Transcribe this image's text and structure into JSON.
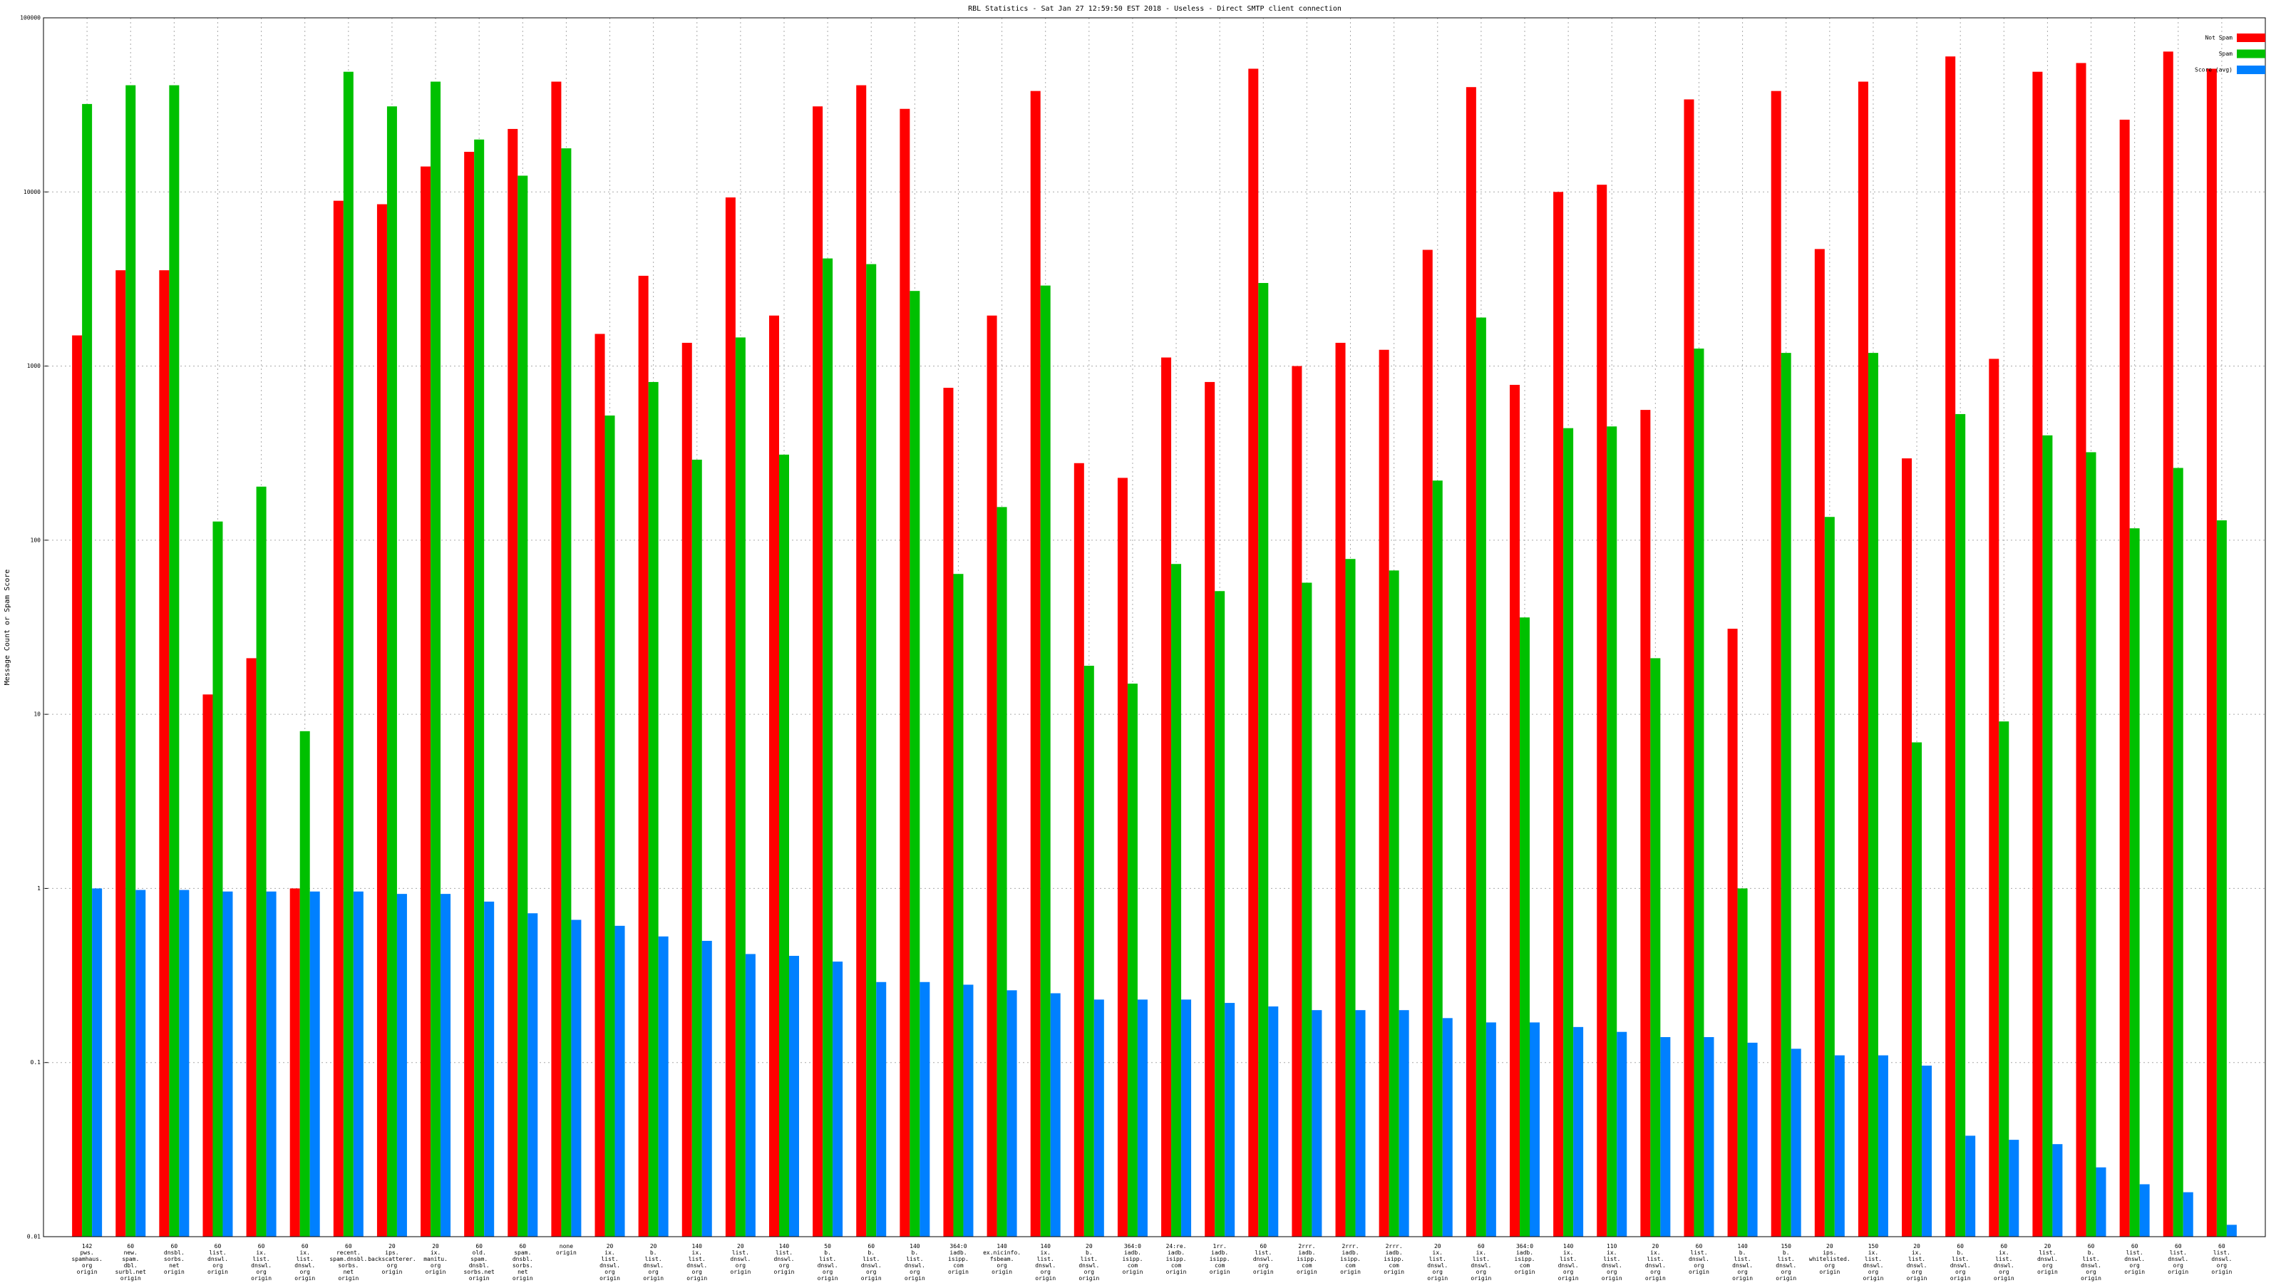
{
  "chart_data": {
    "type": "bar",
    "title": "RBL Statistics - Sat Jan 27 12:59:50 EST 2018 - Useless - Direct SMTP client connection",
    "y_label": "Message Count or Spam Score",
    "log_scale": true,
    "grid": true,
    "legend": "top-right",
    "ylim": [
      0.01,
      100000
    ],
    "yticks": [
      0.01,
      0.1,
      1,
      10,
      100,
      1000,
      10000,
      100000
    ],
    "categories": [
      [
        "142",
        "pws.",
        "spamhaus.",
        "org",
        "origin"
      ],
      [
        "60",
        "new.",
        "spam.",
        "dbl.",
        "surbl.net",
        "origin"
      ],
      [
        "60",
        "dnsbl.",
        "sorbs.",
        "net",
        "origin"
      ],
      [
        "60",
        "list.",
        "dnswl.",
        "org",
        "origin"
      ],
      [
        "60",
        "ix.",
        "list.",
        "dnswl.",
        "org",
        "origin"
      ],
      [
        "60",
        "ix.",
        "list.",
        "dnswl.",
        "org",
        "origin"
      ],
      [
        "60",
        "recent.",
        "spam.dnsbl.",
        "sorbs.",
        "net",
        "origin"
      ],
      [
        "20",
        "ips.",
        "backscatterer.",
        "org",
        "origin"
      ],
      [
        "20",
        "ix.",
        "manitu.",
        "org",
        "origin"
      ],
      [
        "60",
        "old.",
        "spam.",
        "dnsbl.",
        "sorbs.net",
        "origin"
      ],
      [
        "60",
        "spam.",
        "dnsbl.",
        "sorbs.",
        "net",
        "origin"
      ],
      [
        "none",
        "origin"
      ],
      [
        "20",
        "ix.",
        "list.",
        "dnswl.",
        "org",
        "origin"
      ],
      [
        "20",
        "b.",
        "list.",
        "dnswl.",
        "org",
        "origin"
      ],
      [
        "140",
        "ix.",
        "list.",
        "dnswl.",
        "org",
        "origin"
      ],
      [
        "20",
        "list.",
        "dnswl.",
        "org",
        "origin"
      ],
      [
        "140",
        "list.",
        "dnswl.",
        "org",
        "origin"
      ],
      [
        "50",
        "b.",
        "list.",
        "dnswl.",
        "org",
        "origin"
      ],
      [
        "60",
        "b.",
        "list.",
        "dnswl.",
        "org",
        "origin"
      ],
      [
        "140",
        "b.",
        "list.",
        "dnswl.",
        "org",
        "origin"
      ],
      [
        "364:0",
        "iadb.",
        "isipp.",
        "com",
        "origin"
      ],
      [
        "140",
        "ex.nicinfo.",
        "fsbeam.",
        "org",
        "origin"
      ],
      [
        "140",
        "ix.",
        "list.",
        "dnswl.",
        "org",
        "origin"
      ],
      [
        "20",
        "b.",
        "list.",
        "dnswl.",
        "org",
        "origin"
      ],
      [
        "364:0",
        "iadb.",
        "isipp.",
        "com",
        "origin"
      ],
      [
        "24:re.",
        "iadb.",
        "isipp.",
        "com",
        "origin"
      ],
      [
        "1rr.",
        "iadb.",
        "isipp.",
        "com",
        "origin"
      ],
      [
        "60",
        "list.",
        "dnswl.",
        "org",
        "origin"
      ],
      [
        "2rrr.",
        "iadb.",
        "isipp.",
        "com",
        "origin"
      ],
      [
        "2rrr.",
        "iadb.",
        "isipp.",
        "com",
        "origin"
      ],
      [
        "2rrr.",
        "iadb.",
        "isipp.",
        "com",
        "origin"
      ],
      [
        "20",
        "ix.",
        "list.",
        "dnswl.",
        "org",
        "origin"
      ],
      [
        "60",
        "ix.",
        "list.",
        "dnswl.",
        "org",
        "origin"
      ],
      [
        "364:0",
        "iadb.",
        "isipp.",
        "com",
        "origin"
      ],
      [
        "140",
        "ix.",
        "list.",
        "dnswl.",
        "org",
        "origin"
      ],
      [
        "110",
        "ix.",
        "list.",
        "dnswl.",
        "org",
        "origin"
      ],
      [
        "20",
        "ix.",
        "list.",
        "dnswl.",
        "org",
        "origin"
      ],
      [
        "60",
        "list.",
        "dnswl.",
        "org",
        "origin"
      ],
      [
        "140",
        "b.",
        "list.",
        "dnswl.",
        "org",
        "origin"
      ],
      [
        "150",
        "b.",
        "list.",
        "dnswl.",
        "org",
        "origin"
      ],
      [
        "20",
        "ips.",
        "whitelisted.",
        "org",
        "origin"
      ],
      [
        "150",
        "ix.",
        "list.",
        "dnswl.",
        "org",
        "origin"
      ],
      [
        "20",
        "ix.",
        "list.",
        "dnswl.",
        "org",
        "origin"
      ],
      [
        "60",
        "b.",
        "list.",
        "dnswl.",
        "org",
        "origin"
      ],
      [
        "60",
        "ix.",
        "list.",
        "dnswl.",
        "org",
        "origin"
      ],
      [
        "20",
        "list.",
        "dnswl.",
        "org",
        "origin"
      ],
      [
        "60",
        "b.",
        "list.",
        "dnswl.",
        "org",
        "origin"
      ],
      [
        "60",
        "list.",
        "dnswl.",
        "org",
        "origin"
      ],
      [
        "60",
        "list.",
        "dnswl.",
        "org",
        "origin"
      ],
      [
        "60",
        "list.",
        "dnswl.",
        "org",
        "origin"
      ]
    ],
    "series": [
      {
        "name": "Not Spam",
        "color": "#ff0000",
        "values": [
          1500,
          3550,
          3550,
          13,
          21,
          1,
          8900,
          8500,
          14000,
          17000,
          23000,
          43000,
          1530,
          3300,
          1360,
          9300,
          1950,
          31000,
          41000,
          30000,
          750,
          1950,
          38000,
          277,
          228,
          1120,
          810,
          51000,
          1000,
          1360,
          1240,
          4650,
          40000,
          780,
          10000,
          11000,
          560,
          34000,
          31,
          38000,
          4700,
          43000,
          295,
          60000,
          1100,
          49000,
          55000,
          26000,
          64000,
          51000
        ]
      },
      {
        "name": "Spam",
        "color": "#00c000",
        "values": [
          32000,
          41000,
          41000,
          128,
          203,
          8,
          49000,
          31000,
          43000,
          20000,
          12400,
          17800,
          520,
          810,
          290,
          1460,
          310,
          4150,
          3850,
          2700,
          64,
          155,
          2900,
          19,
          15,
          73,
          51,
          3000,
          57,
          78,
          67,
          220,
          1900,
          36,
          440,
          450,
          21,
          1260,
          1,
          1190,
          136,
          1190,
          6.9,
          530,
          9.1,
          400,
          320,
          117,
          260,
          130
        ]
      },
      {
        "name": "Score (avg)",
        "color": "#0080ff",
        "values": [
          1,
          0.98,
          0.98,
          0.96,
          0.96,
          0.96,
          0.96,
          0.93,
          0.93,
          0.84,
          0.72,
          0.66,
          0.61,
          0.53,
          0.5,
          0.42,
          0.41,
          0.38,
          0.29,
          0.29,
          0.28,
          0.26,
          0.25,
          0.23,
          0.23,
          0.23,
          0.22,
          0.21,
          0.2,
          0.2,
          0.2,
          0.18,
          0.17,
          0.17,
          0.16,
          0.15,
          0.14,
          0.14,
          0.13,
          0.12,
          0.11,
          0.11,
          0.096,
          0.038,
          0.036,
          0.034,
          0.025,
          0.02,
          0.018,
          0.0117
        ]
      }
    ]
  }
}
